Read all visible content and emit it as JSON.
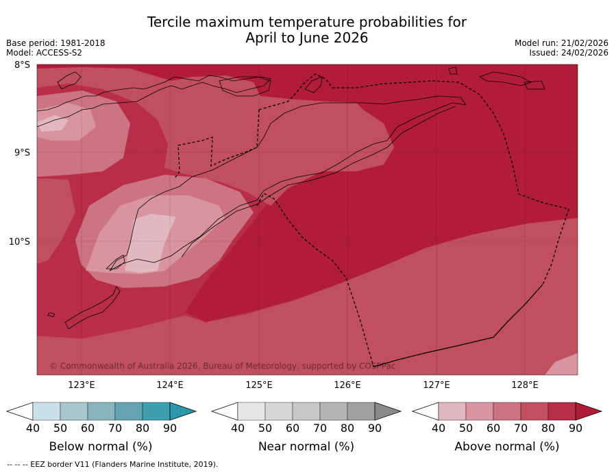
{
  "header": {
    "title_line1": "Tercile maximum temperature probabilities for",
    "title_line2": "April to June 2026",
    "base_period": "Base period: 1981-2018",
    "model": "Model: ACCESS-S2",
    "model_run": "Model run: 21/02/2026",
    "issued": "Issued: 24/02/2026"
  },
  "map": {
    "lat_labels": [
      "8°S",
      "9°S",
      "10°S"
    ],
    "lon_labels": [
      "123°E",
      "124°E",
      "125°E",
      "126°E",
      "127°E",
      "128°E"
    ],
    "copyright": "© Commonwealth of Australia 2026, Bureau of Meteorology, supported by COSPPac",
    "colors": {
      "above_40": "#e3b7bf",
      "above_50": "#d9959f",
      "above_60": "#cc7481",
      "above_70": "#c05060",
      "above_80": "#b82e48",
      "above_90": "#b01c3a"
    }
  },
  "legends": [
    {
      "title": "Below normal (%)",
      "ticks": [
        "40",
        "50",
        "60",
        "70",
        "80",
        "90"
      ],
      "colors": [
        "#ffffff",
        "#c8e0e6",
        "#a8c6cc",
        "#88b4be",
        "#64a4b1",
        "#3f9eae",
        "#2e97a9"
      ]
    },
    {
      "title": "Near normal (%)",
      "ticks": [
        "40",
        "50",
        "60",
        "70",
        "80",
        "90"
      ],
      "colors": [
        "#ffffff",
        "#e6e6e6",
        "#d6d6d6",
        "#c8c8c8",
        "#b4b4b4",
        "#a0a0a0",
        "#8a8a8a"
      ]
    },
    {
      "title": "Above normal (%)",
      "ticks": [
        "40",
        "50",
        "60",
        "70",
        "80",
        "90"
      ],
      "colors": [
        "#ffffff",
        "#e3b7bf",
        "#d9959f",
        "#cc7481",
        "#c05060",
        "#b82e48",
        "#b01c3a"
      ]
    }
  ],
  "footnote": "--  --  -- EEZ border V11 (Flanders Marine Institute, 2019)."
}
